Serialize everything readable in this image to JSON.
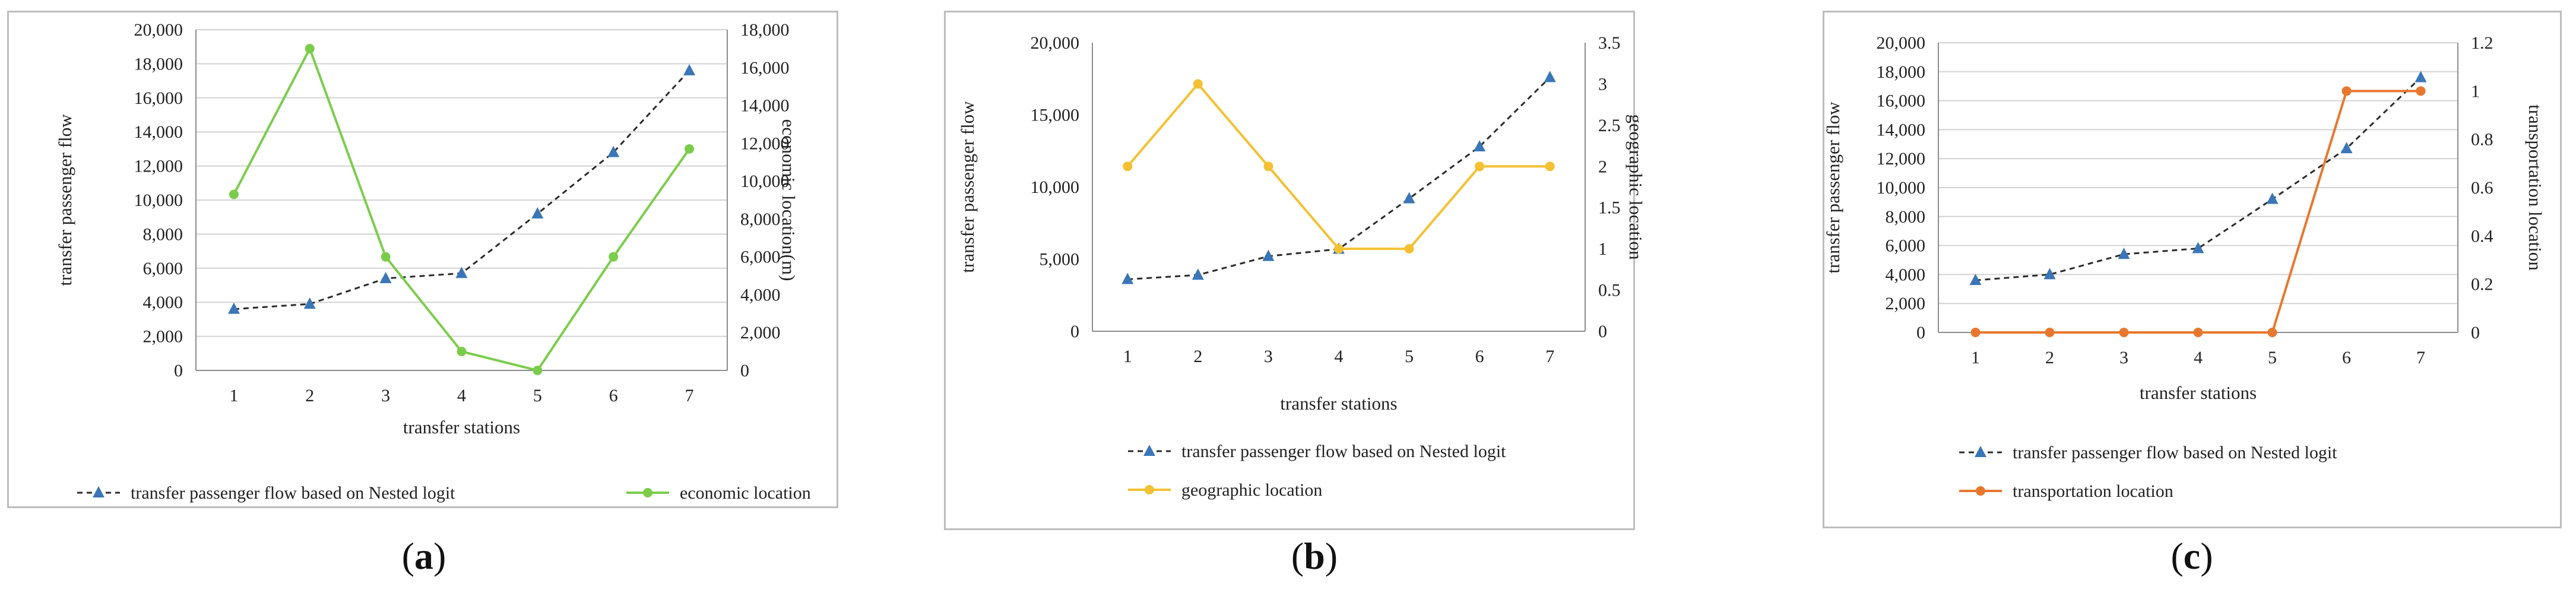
{
  "chart_data": [
    {
      "type": "line",
      "caption_letter": "a",
      "categories": [
        1,
        2,
        3,
        4,
        5,
        6,
        7
      ],
      "xlabel": "transfer stations",
      "ylabel": "transfer  passenger  flow",
      "y2label": "economic location(m)",
      "ylim": [
        0,
        20000
      ],
      "yticks": [
        0,
        2000,
        4000,
        6000,
        8000,
        10000,
        12000,
        14000,
        16000,
        18000,
        20000
      ],
      "y2lim": [
        0,
        18000
      ],
      "y2ticks": [
        0,
        2000,
        4000,
        6000,
        8000,
        10000,
        12000,
        14000,
        16000,
        18000
      ],
      "grid": true,
      "legend_position": "bottom",
      "series": [
        {
          "name": "transfer passenger flow based on Nested logit",
          "axis": "left",
          "style": "dashed",
          "marker": "triangle",
          "color": "#2b2b2b",
          "marker_color": "#3a76b8",
          "values": [
            3600,
            3900,
            5400,
            5700,
            9200,
            12800,
            17600
          ]
        },
        {
          "name": "economic location",
          "axis": "right",
          "style": "solid",
          "marker": "circle",
          "color": "#7ccc4c",
          "values": [
            9300,
            17000,
            6000,
            1000,
            0,
            6000,
            11700
          ]
        }
      ]
    },
    {
      "type": "line",
      "caption_letter": "b",
      "categories": [
        1,
        2,
        3,
        4,
        5,
        6,
        7
      ],
      "xlabel": "transfer stations",
      "ylabel": "transfer  passenger  flow",
      "y2label": "geographic  location",
      "ylim": [
        0,
        20000
      ],
      "yticks": [
        0,
        5000,
        10000,
        15000,
        20000
      ],
      "y2lim": [
        0,
        3.5
      ],
      "y2ticks": [
        0,
        0.5,
        1,
        1.5,
        2,
        2.5,
        3,
        3.5
      ],
      "grid": false,
      "legend_position": "bottom",
      "series": [
        {
          "name": "transfer passenger flow based on Nested logit",
          "axis": "left",
          "style": "dashed",
          "marker": "triangle",
          "color": "#2b2b2b",
          "marker_color": "#3a76b8",
          "values": [
            3600,
            3900,
            5200,
            5700,
            9200,
            12800,
            17600
          ]
        },
        {
          "name": "geographic location",
          "axis": "right",
          "style": "solid",
          "marker": "circle",
          "color": "#f4c133",
          "values": [
            2,
            3,
            2,
            1,
            1,
            2,
            2
          ]
        }
      ]
    },
    {
      "type": "line",
      "caption_letter": "c",
      "categories": [
        1,
        2,
        3,
        4,
        5,
        6,
        7
      ],
      "xlabel": "transfer stations",
      "ylabel": "transfer  passenger  flow",
      "y2label": "transportation  location",
      "ylim": [
        0,
        20000
      ],
      "yticks": [
        0,
        2000,
        4000,
        6000,
        8000,
        10000,
        12000,
        14000,
        16000,
        18000,
        20000
      ],
      "y2lim": [
        0,
        1.2
      ],
      "y2ticks": [
        0,
        0.2,
        0.4,
        0.6,
        0.8,
        1,
        1.2
      ],
      "grid": true,
      "legend_position": "bottom",
      "series": [
        {
          "name": "transfer passenger flow based on Nested logit",
          "axis": "left",
          "style": "dashed",
          "marker": "triangle",
          "color": "#2b2b2b",
          "marker_color": "#3a76b8",
          "values": [
            3600,
            4000,
            5400,
            5800,
            9200,
            12700,
            17600
          ]
        },
        {
          "name": "transportation location",
          "axis": "right",
          "style": "solid",
          "marker": "circle",
          "color": "#e8772e",
          "values": [
            0,
            0,
            0,
            0,
            0,
            1,
            1
          ]
        }
      ]
    }
  ]
}
